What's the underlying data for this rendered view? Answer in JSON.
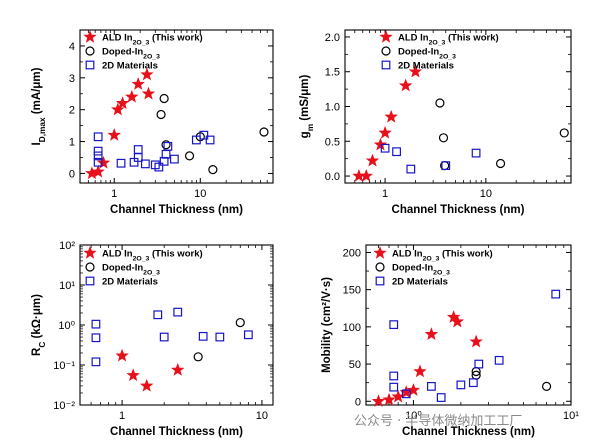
{
  "chart_data": [
    {
      "type": "scatter",
      "ylabel": "I_D,max (mA/μm)",
      "xlabel": "Channel Thickness (nm)",
      "xscale": "log",
      "yscale": "linear",
      "xlim": [
        0.4,
        70
      ],
      "ylim": [
        -0.3,
        4.5
      ],
      "yticks": [
        0,
        1,
        2,
        3,
        4
      ],
      "xticks": [
        1,
        10
      ],
      "legend": "top-left",
      "series": [
        {
          "name": "ALD In2O3 (This work)",
          "marker": "star",
          "color": "#e8101a",
          "points": [
            [
              0.55,
              0
            ],
            [
              0.65,
              0.05
            ],
            [
              0.75,
              0.33
            ],
            [
              1.0,
              1.2
            ],
            [
              1.1,
              2.0
            ],
            [
              1.25,
              2.2
            ],
            [
              1.6,
              2.4
            ],
            [
              1.9,
              2.8
            ],
            [
              2.4,
              3.1
            ],
            [
              2.5,
              2.5
            ]
          ]
        },
        {
          "name": "Doped-In2O3",
          "marker": "circle",
          "color": "#000000",
          "points": [
            [
              3.5,
              1.85
            ],
            [
              3.8,
              2.35
            ],
            [
              4.0,
              0.9
            ],
            [
              7.5,
              0.55
            ],
            [
              10.0,
              1.15
            ],
            [
              14,
              0.12
            ],
            [
              55,
              1.3
            ]
          ]
        },
        {
          "name": "2D Materials",
          "marker": "square",
          "color": "#1616c8",
          "points": [
            [
              0.65,
              0.35
            ],
            [
              0.65,
              0.55
            ],
            [
              0.65,
              0.7
            ],
            [
              0.65,
              1.15
            ],
            [
              1.2,
              0.32
            ],
            [
              1.7,
              0.35
            ],
            [
              1.9,
              0.5
            ],
            [
              1.9,
              0.75
            ],
            [
              2.3,
              0.3
            ],
            [
              3.0,
              0.27
            ],
            [
              3.3,
              0.2
            ],
            [
              3.8,
              0.38
            ],
            [
              4.0,
              0.6
            ],
            [
              4.2,
              0.85
            ],
            [
              5,
              0.45
            ],
            [
              9,
              1.05
            ],
            [
              11,
              1.2
            ],
            [
              13,
              1.05
            ]
          ]
        }
      ]
    },
    {
      "type": "scatter",
      "ylabel": "g_m (mS/μm)",
      "xlabel": "Channel Thickness (nm)",
      "xscale": "log",
      "yscale": "linear",
      "xlim": [
        0.4,
        70
      ],
      "ylim": [
        -0.1,
        2.1
      ],
      "yticks": [
        0.0,
        0.5,
        1.0,
        1.5,
        2.0
      ],
      "xticks": [
        1,
        10
      ],
      "legend": "top-center",
      "series": [
        {
          "name": "ALD In2O3 (This work)",
          "marker": "star",
          "color": "#e8101a",
          "points": [
            [
              0.55,
              0
            ],
            [
              0.65,
              0
            ],
            [
              0.75,
              0.22
            ],
            [
              0.9,
              0.45
            ],
            [
              1.0,
              0.62
            ],
            [
              1.15,
              0.85
            ],
            [
              1.6,
              1.3
            ],
            [
              2.0,
              1.5
            ]
          ]
        },
        {
          "name": "Doped-In2O3",
          "marker": "circle",
          "color": "#000000",
          "points": [
            [
              3.5,
              1.05
            ],
            [
              3.8,
              0.55
            ],
            [
              3.9,
              0.15
            ],
            [
              14,
              0.18
            ],
            [
              60,
              0.62
            ]
          ]
        },
        {
          "name": "2D Materials",
          "marker": "square",
          "color": "#1616c8",
          "points": [
            [
              1.0,
              0.4
            ],
            [
              1.3,
              0.35
            ],
            [
              1.8,
              0.1
            ],
            [
              4.0,
              0.15
            ],
            [
              8.0,
              0.33
            ]
          ]
        }
      ]
    },
    {
      "type": "scatter",
      "ylabel": "R_C (kΩ·μm)",
      "xlabel": "Channel Thickness (nm)",
      "xscale": "log",
      "yscale": "log",
      "xlim": [
        0.5,
        12
      ],
      "ylim": [
        0.01,
        100
      ],
      "yticks": [
        0.01,
        0.1,
        1,
        10,
        100
      ],
      "ytick_labels": [
        "10^-2",
        "10^-1",
        "10^0",
        "10^1",
        "10^2"
      ],
      "xticks": [
        1,
        10
      ],
      "xtick_labels": [
        "1",
        "10"
      ],
      "legend": "top-left",
      "series": [
        {
          "name": "ALD In2O3 (This work)",
          "marker": "star",
          "color": "#e8101a",
          "points": [
            [
              1.0,
              0.17
            ],
            [
              1.2,
              0.055
            ],
            [
              1.5,
              0.03
            ],
            [
              2.5,
              0.075
            ]
          ]
        },
        {
          "name": "Doped-In2O3",
          "marker": "circle",
          "color": "#000000",
          "points": [
            [
              3.5,
              0.16
            ],
            [
              7.0,
              1.15
            ]
          ]
        },
        {
          "name": "2D Materials",
          "marker": "square",
          "color": "#1616c8",
          "points": [
            [
              0.65,
              1.05
            ],
            [
              0.65,
              0.48
            ],
            [
              0.65,
              0.12
            ],
            [
              1.8,
              1.8
            ],
            [
              2.0,
              0.5
            ],
            [
              2.5,
              2.1
            ],
            [
              3.8,
              0.52
            ],
            [
              5.0,
              0.5
            ],
            [
              8.0,
              0.57
            ]
          ]
        }
      ]
    },
    {
      "type": "scatter",
      "ylabel": "Mobility (cm²/V·s)",
      "xlabel": "Channel Thickness (nm)",
      "xscale": "log",
      "yscale": "linear",
      "xlim": [
        0.5,
        10
      ],
      "ylim": [
        -5,
        210
      ],
      "yticks": [
        0,
        50,
        100,
        150,
        200
      ],
      "xticks": [
        1,
        10
      ],
      "xtick_labels": [
        "10^0",
        "10^1"
      ],
      "legend": "top-left",
      "series": [
        {
          "name": "ALD In2O3 (This work)",
          "marker": "star",
          "color": "#e8101a",
          "points": [
            [
              0.6,
              0
            ],
            [
              0.7,
              2
            ],
            [
              0.8,
              6
            ],
            [
              0.9,
              12
            ],
            [
              1.0,
              15
            ],
            [
              1.1,
              40
            ],
            [
              1.3,
              90
            ],
            [
              1.8,
              113
            ],
            [
              1.9,
              107
            ],
            [
              2.5,
              80
            ]
          ]
        },
        {
          "name": "Doped-In2O3",
          "marker": "circle",
          "color": "#000000",
          "points": [
            [
              2.5,
              40
            ],
            [
              2.5,
              35
            ],
            [
              7.0,
              20
            ]
          ]
        },
        {
          "name": "2D Materials",
          "marker": "square",
          "color": "#1616c8",
          "points": [
            [
              0.75,
              103
            ],
            [
              0.75,
              34
            ],
            [
              0.75,
              19
            ],
            [
              0.9,
              10
            ],
            [
              1.3,
              20
            ],
            [
              1.5,
              5
            ],
            [
              2.0,
              22
            ],
            [
              2.4,
              25
            ],
            [
              2.6,
              50
            ],
            [
              3.5,
              55
            ],
            [
              8.0,
              144
            ]
          ]
        }
      ]
    }
  ],
  "watermark": "公众号 · 半导体微纳加工工厂"
}
